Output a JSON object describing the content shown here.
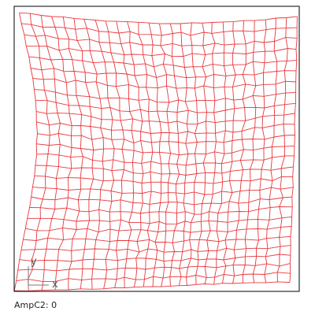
{
  "status": {
    "label": "AmpC2:",
    "value": "0"
  },
  "axes": {
    "x_label": "x",
    "y_label": "y"
  },
  "mesh": {
    "line_color": "#e8383d",
    "frame_color": "#000000",
    "axis_color": "#7a7a7a"
  }
}
